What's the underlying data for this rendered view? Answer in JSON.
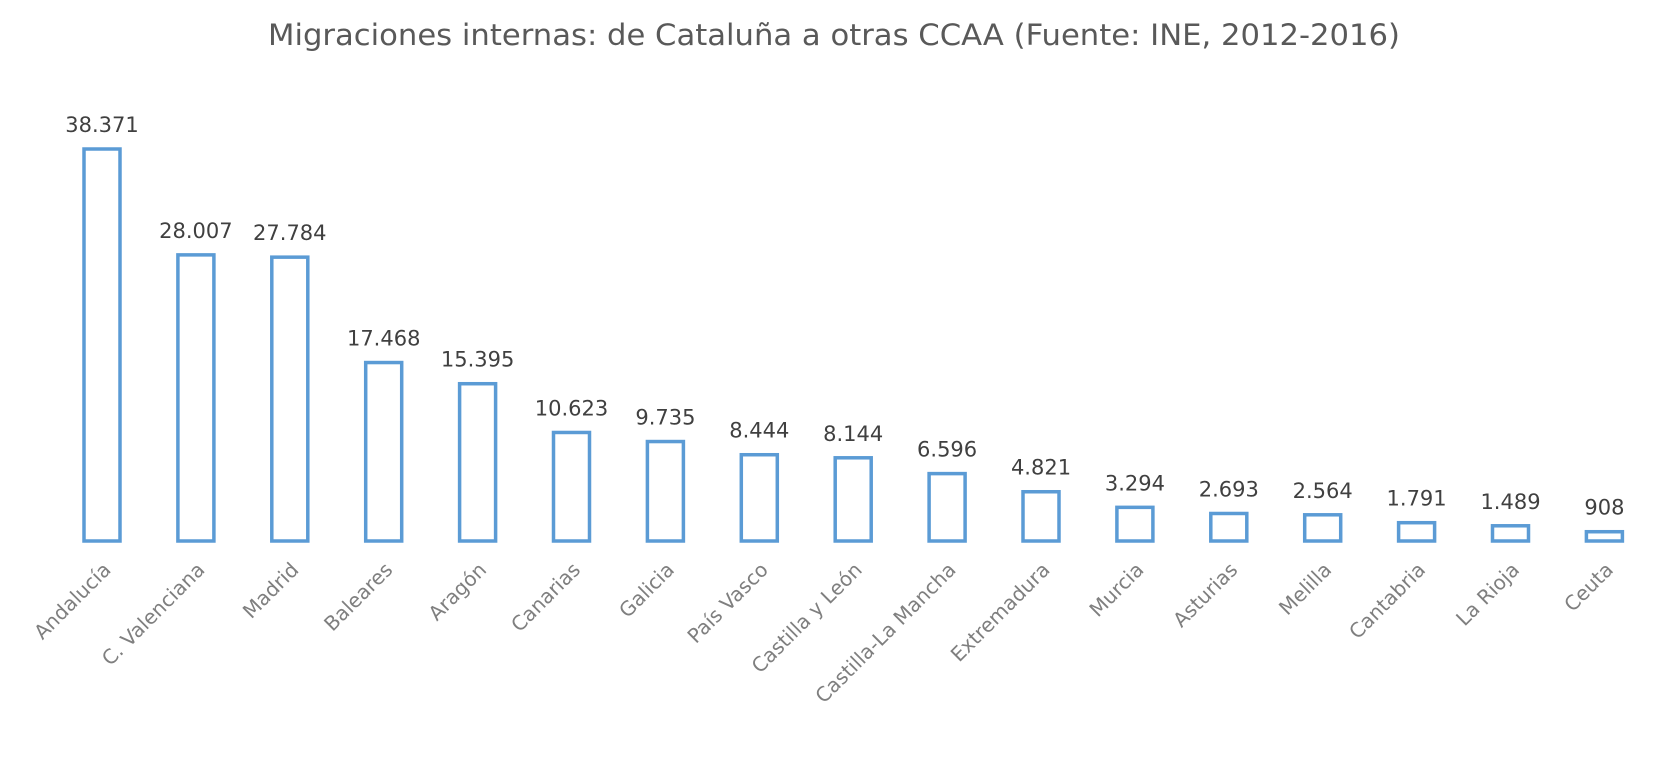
{
  "chart_data": {
    "type": "bar",
    "title": "Migraciones internas: de Cataluña a otras CCAA (Fuente: INE, 2012-2016)",
    "xlabel": "",
    "ylabel": "",
    "categories": [
      "Andalucía",
      "C. Valenciana",
      "Madrid",
      "Baleares",
      "Aragón",
      "Canarias",
      "Galicia",
      "País Vasco",
      "Castilla y León",
      "Castilla-La Mancha",
      "Extremadura",
      "Murcia",
      "Asturias",
      "Melilla",
      "Cantabria",
      "La Rioja",
      "Ceuta"
    ],
    "values": [
      38371,
      28007,
      27784,
      17468,
      15395,
      10623,
      9735,
      8444,
      8144,
      6596,
      4821,
      3294,
      2693,
      2564,
      1791,
      1489,
      908
    ],
    "data_labels": [
      "38.371",
      "28.007",
      "27.784",
      "17.468",
      "15.395",
      "10.623",
      "9.735",
      "8.444",
      "8.144",
      "6.596",
      "4.821",
      "3.294",
      "2.693",
      "2.564",
      "1.791",
      "1.489",
      "908"
    ],
    "ylim": [
      0,
      38371
    ],
    "grid": false,
    "legend": "none",
    "bar_style": "outline",
    "colors": {
      "bar_outline": "#5b9bd5",
      "bar_fill": "#ffffff",
      "title": "#595959",
      "data_label": "#404040",
      "category_label": "#7f7f7f"
    }
  }
}
